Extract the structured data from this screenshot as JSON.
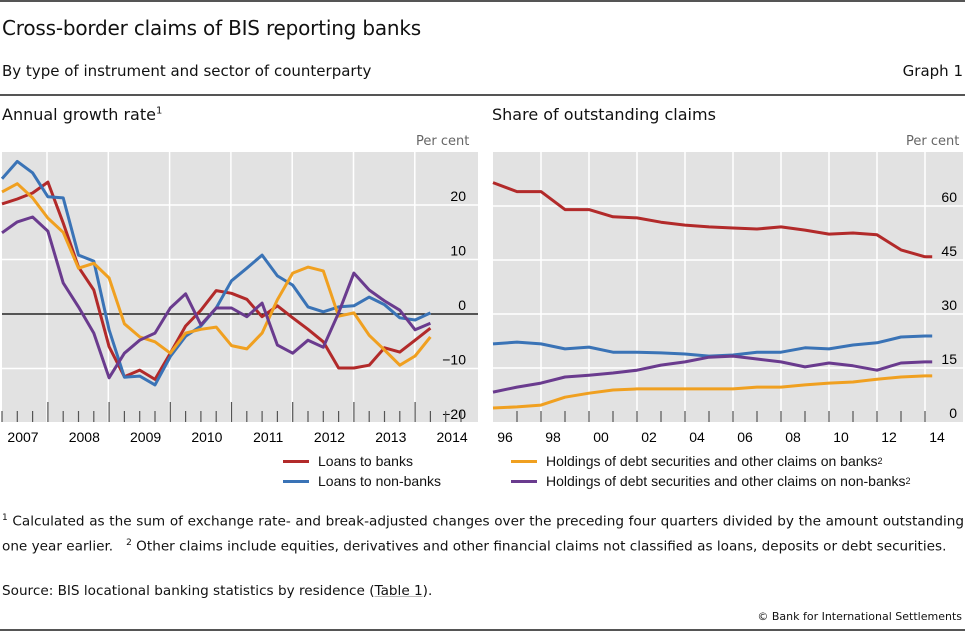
{
  "header": {
    "title": "Cross-border claims of BIS reporting banks",
    "subtitle": "By type of instrument and sector of counterparty",
    "graph_number": "Graph 1"
  },
  "colors": {
    "loans_banks": "#b22a2a",
    "loans_nonbanks": "#3a73b6",
    "debt_banks": "#f0a020",
    "debt_nonbanks": "#6a3b8e",
    "plot_bg": "#e2e2e2"
  },
  "legend": {
    "left": [
      {
        "label": "Loans to banks",
        "color_key": "loans_banks"
      },
      {
        "label": "Loans to non-banks",
        "color_key": "loans_nonbanks"
      }
    ],
    "right": [
      {
        "label": "Holdings of debt securities and other claims on banks",
        "sup": "2",
        "color_key": "debt_banks"
      },
      {
        "label": "Holdings of debt securities and other claims on non-banks",
        "sup": "2",
        "color_key": "debt_nonbanks"
      }
    ]
  },
  "footnotes": {
    "note1_marker": "1",
    "note1": "Calculated as the sum of exchange rate- and break-adjusted changes over the preceding four quarters divided by the amount outstanding one year earlier.",
    "note2_marker": "2",
    "note2": "Other claims include equities, derivatives and other financial claims not classified as loans, deposits or debt securities.",
    "source_prefix": "Source: BIS locational banking statistics by residence (",
    "source_link": "Table 1",
    "source_suffix": ").",
    "copyright": "© Bank for International Settlements"
  },
  "chart_data": [
    {
      "type": "line",
      "title": "Annual growth rate",
      "title_sup": "1",
      "unit_label": "Per cent",
      "xlabel": "",
      "ylabel": "Per cent",
      "frequency": "quarterly",
      "x_start": "2007Q1",
      "x_end": "2014Q1",
      "tick_labels_x": [
        "2007",
        "2008",
        "2009",
        "2010",
        "2011",
        "2012",
        "2013",
        "2014"
      ],
      "tick_labels_y": [
        "20",
        "10",
        "0",
        "−10",
        "−20"
      ],
      "yticks": [
        20,
        10,
        0,
        -10,
        -20
      ],
      "ylim": [
        -20,
        28
      ],
      "grid": true,
      "zero_line": true,
      "y_axis_side": "right",
      "legend_position": "bottom",
      "series": [
        {
          "name": "Loans to banks",
          "color_key": "loans_banks",
          "values": [
            20.2,
            21.1,
            22.2,
            24.2,
            16.7,
            8.6,
            4.4,
            -6.0,
            -11.5,
            -10.3,
            -12.0,
            -7.2,
            -2.2,
            0.7,
            4.3,
            3.8,
            2.7,
            -0.5,
            1.5,
            -0.7,
            -2.8,
            -5.1,
            -9.9,
            -9.9,
            -9.4,
            -6.2,
            -7.0,
            -4.8,
            -2.6
          ]
        },
        {
          "name": "Loans to non-banks",
          "color_key": "loans_nonbanks",
          "values": [
            24.8,
            28.0,
            25.9,
            21.5,
            21.3,
            10.8,
            9.7,
            -2.9,
            -11.6,
            -11.4,
            -13.0,
            -7.8,
            -4.1,
            -2.2,
            1.1,
            6.1,
            8.4,
            10.8,
            7.0,
            5.3,
            1.3,
            0.4,
            1.3,
            1.5,
            3.1,
            1.7,
            -0.7,
            -1.1,
            0.2
          ]
        },
        {
          "name": "Holdings of debt securities and other claims on banks",
          "color_key": "debt_banks",
          "values": [
            22.4,
            23.9,
            21.3,
            17.6,
            15.0,
            8.4,
            9.3,
            6.6,
            -1.8,
            -4.2,
            -5.1,
            -7.2,
            -3.5,
            -2.8,
            -2.4,
            -5.8,
            -6.4,
            -3.5,
            2.6,
            7.5,
            8.6,
            7.9,
            -0.4,
            0.2,
            -3.9,
            -6.6,
            -9.4,
            -7.7,
            -4.2
          ]
        },
        {
          "name": "Holdings of debt securities and other claims on non-banks",
          "color_key": "debt_nonbanks",
          "values": [
            14.9,
            16.9,
            17.8,
            15.2,
            5.7,
            1.3,
            -3.5,
            -11.7,
            -7.2,
            -4.8,
            -3.5,
            1.1,
            3.7,
            -2.0,
            1.1,
            1.1,
            -0.5,
            2.0,
            -5.7,
            -7.2,
            -4.8,
            -6.1,
            0.2,
            7.5,
            4.4,
            2.4,
            0.7,
            -2.9,
            -1.7
          ]
        }
      ]
    },
    {
      "type": "line",
      "title": "Share of outstanding claims",
      "unit_label": "Per cent",
      "xlabel": "",
      "ylabel": "Per cent",
      "frequency": "annual (sampled)",
      "x": [
        1996,
        1997,
        1998,
        1999,
        2000,
        2001,
        2002,
        2003,
        2004,
        2005,
        2006,
        2007,
        2008,
        2009,
        2010,
        2011,
        2012,
        2013,
        2014,
        2014.3
      ],
      "tick_labels_x": [
        "96",
        "98",
        "00",
        "02",
        "04",
        "06",
        "08",
        "10",
        "12",
        "14"
      ],
      "tick_labels_y": [
        "60",
        "45",
        "30",
        "15",
        "0"
      ],
      "yticks": [
        60,
        45,
        30,
        15,
        0
      ],
      "ylim": [
        0,
        70
      ],
      "grid": true,
      "y_axis_side": "right",
      "legend_position": "bottom",
      "series": [
        {
          "name": "Loans to banks",
          "color_key": "loans_banks",
          "values": [
            66.5,
            64.0,
            64.0,
            59.0,
            59.0,
            57.0,
            56.7,
            55.5,
            54.7,
            54.2,
            53.9,
            53.6,
            54.2,
            53.3,
            52.2,
            52.5,
            52.0,
            47.8,
            45.9,
            45.9
          ]
        },
        {
          "name": "Loans to non-banks",
          "color_key": "loans_nonbanks",
          "values": [
            21.7,
            22.2,
            21.7,
            20.3,
            20.8,
            19.4,
            19.4,
            19.2,
            18.9,
            18.3,
            18.6,
            19.4,
            19.4,
            20.6,
            20.3,
            21.4,
            22.0,
            23.6,
            23.9,
            23.9
          ]
        },
        {
          "name": "Holdings of debt securities and other claims on banks",
          "color_key": "debt_banks",
          "values": [
            3.9,
            4.2,
            4.7,
            6.9,
            8.0,
            8.9,
            9.2,
            9.2,
            9.2,
            9.2,
            9.2,
            9.7,
            9.7,
            10.3,
            10.8,
            11.1,
            11.9,
            12.5,
            12.8,
            12.8
          ]
        },
        {
          "name": "Holdings of debt securities and other claims on non-banks",
          "color_key": "debt_nonbanks",
          "values": [
            8.3,
            9.7,
            10.8,
            12.5,
            13.0,
            13.6,
            14.4,
            15.8,
            16.7,
            18.0,
            18.3,
            17.5,
            16.7,
            15.3,
            16.4,
            15.6,
            14.4,
            16.4,
            16.7,
            16.7
          ]
        }
      ]
    }
  ]
}
